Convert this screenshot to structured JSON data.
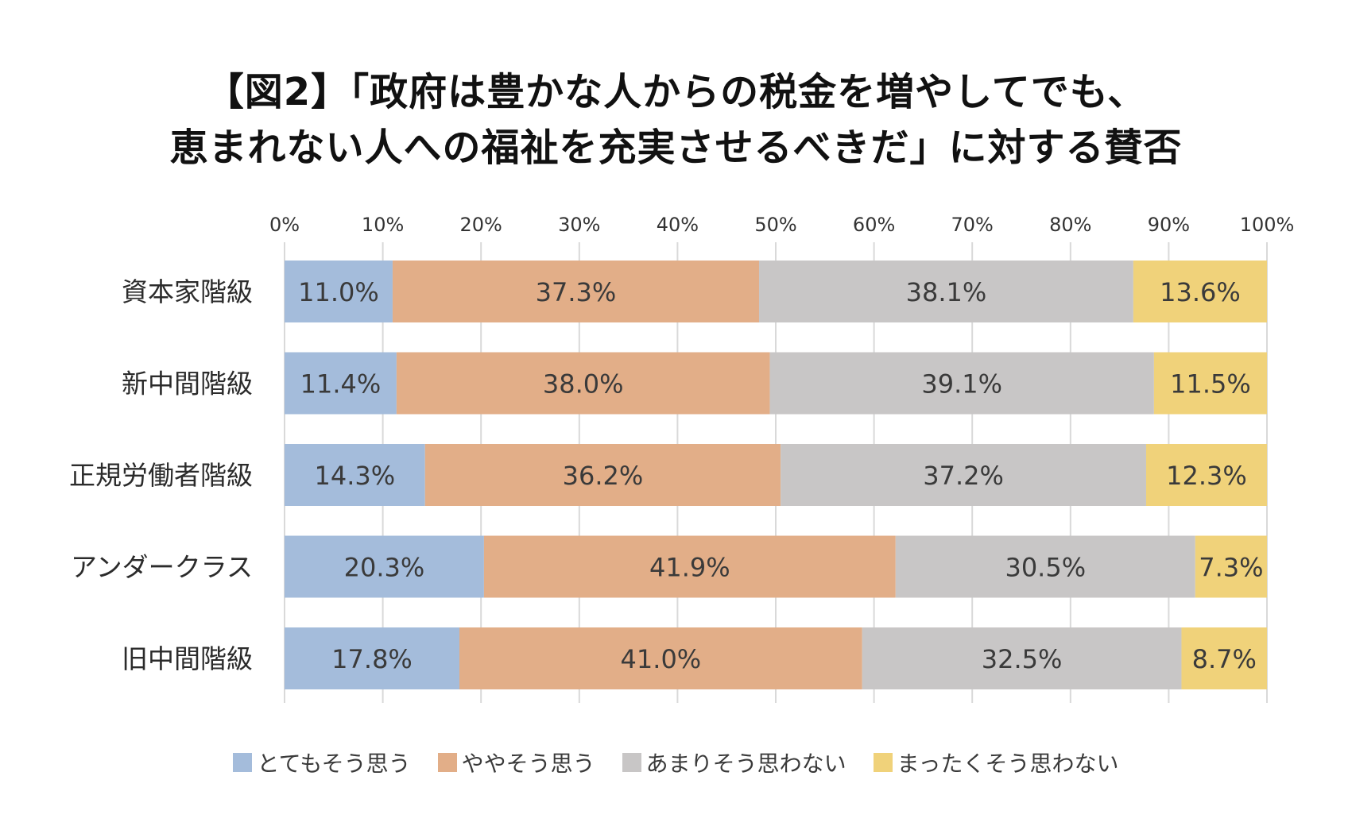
{
  "chart_data": {
    "type": "bar",
    "orientation": "horizontal",
    "stacked": true,
    "percent": true,
    "title": [
      "【図2】「政府は豊かな人からの税金を増やしてでも、",
      "恵まれない人への福祉を充実させるべきだ」に対する賛否"
    ],
    "xlim": [
      0,
      100
    ],
    "x_ticks": [
      "0%",
      "10%",
      "20%",
      "30%",
      "40%",
      "50%",
      "60%",
      "70%",
      "80%",
      "90%",
      "100%"
    ],
    "grid": true,
    "legend_position": "bottom",
    "categories": [
      "資本家階級",
      "新中間階級",
      "正規労働者階級",
      "アンダークラス",
      "旧中間階級"
    ],
    "series": [
      {
        "name": "とてもそう思う",
        "color": "#a4bcdb",
        "values": [
          11.0,
          11.4,
          14.3,
          20.3,
          17.8
        ],
        "labels": [
          "11.0%",
          "11.4%",
          "14.3%",
          "20.3%",
          "17.8%"
        ]
      },
      {
        "name": "ややそう思う",
        "color": "#e2ae88",
        "values": [
          37.3,
          38.0,
          36.2,
          41.9,
          41.0
        ],
        "labels": [
          "37.3%",
          "38.0%",
          "36.2%",
          "41.9%",
          "41.0%"
        ]
      },
      {
        "name": "あまりそう思わない",
        "color": "#c8c6c6",
        "values": [
          38.1,
          39.1,
          37.2,
          30.5,
          32.5
        ],
        "labels": [
          "38.1%",
          "39.1%",
          "37.2%",
          "30.5%",
          "32.5%"
        ]
      },
      {
        "name": "まったくそう思わない",
        "color": "#f0d27a",
        "values": [
          13.6,
          11.5,
          12.3,
          7.3,
          8.7
        ],
        "labels": [
          "13.6%",
          "11.5%",
          "12.3%",
          "7.3%",
          "8.7%"
        ]
      }
    ]
  }
}
